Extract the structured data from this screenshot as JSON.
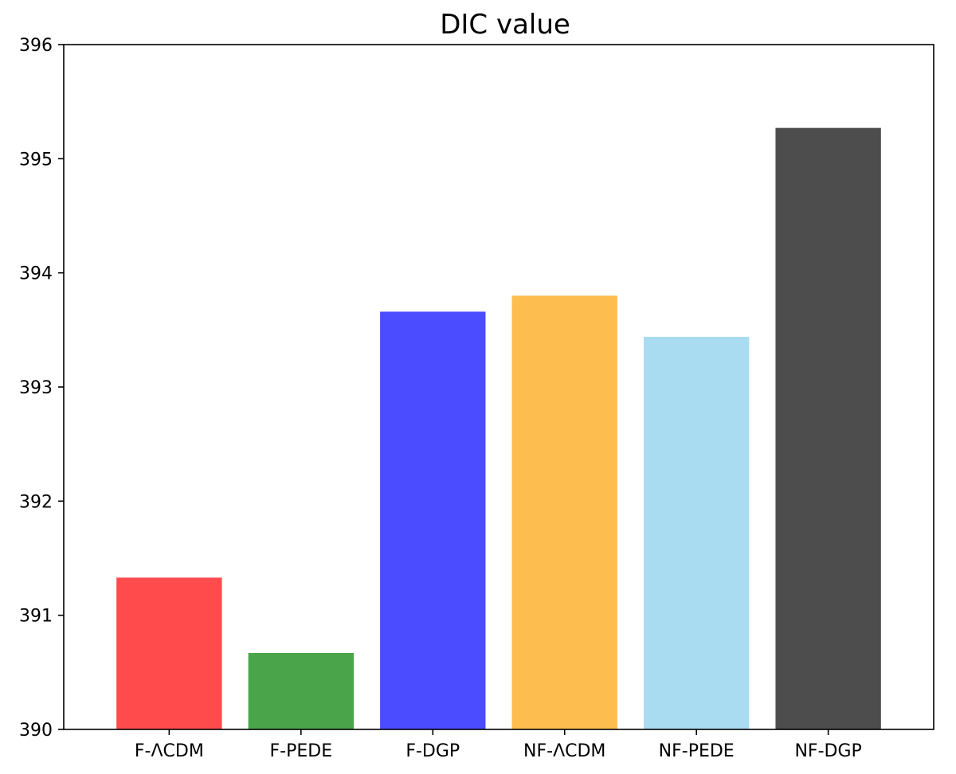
{
  "chart_data": {
    "type": "bar",
    "title": "DIC value",
    "xlabel": "",
    "ylabel": "",
    "categories": [
      "F-ΛCDM",
      "F-PEDE",
      "F-DGP",
      "NF-ΛCDM",
      "NF-PEDE",
      "NF-DGP"
    ],
    "values": [
      391.33,
      390.67,
      393.66,
      393.8,
      393.44,
      395.27
    ],
    "colors": [
      "#ff4b4b",
      "#4aa54a",
      "#4b4bff",
      "#fdbe4f",
      "#a9dcf0",
      "#4d4d4d"
    ],
    "ylim": [
      390,
      396
    ],
    "yticks": [
      390,
      391,
      392,
      393,
      394,
      395,
      396
    ],
    "grid": false,
    "legend": "none"
  }
}
